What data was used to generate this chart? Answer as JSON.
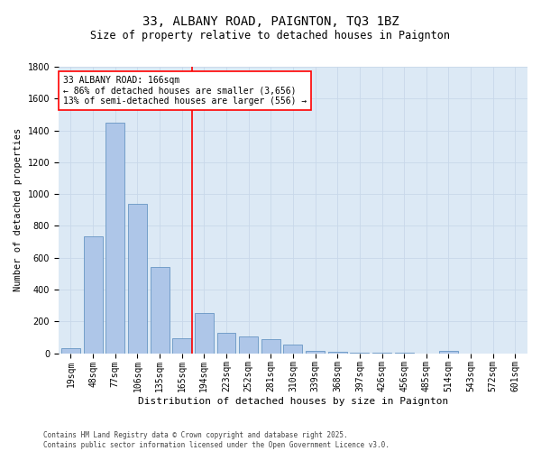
{
  "title1": "33, ALBANY ROAD, PAIGNTON, TQ3 1BZ",
  "title2": "Size of property relative to detached houses in Paignton",
  "xlabel": "Distribution of detached houses by size in Paignton",
  "ylabel": "Number of detached properties",
  "categories": [
    "19sqm",
    "48sqm",
    "77sqm",
    "106sqm",
    "135sqm",
    "165sqm",
    "194sqm",
    "223sqm",
    "252sqm",
    "281sqm",
    "310sqm",
    "339sqm",
    "368sqm",
    "397sqm",
    "426sqm",
    "456sqm",
    "485sqm",
    "514sqm",
    "543sqm",
    "572sqm",
    "601sqm"
  ],
  "values": [
    30,
    735,
    1450,
    940,
    540,
    95,
    255,
    130,
    105,
    90,
    55,
    15,
    8,
    4,
    2,
    2,
    0,
    15,
    0,
    0,
    0
  ],
  "bar_color": "#aec6e8",
  "bar_edge_color": "#5588bb",
  "grid_color": "#c8d8ea",
  "background_color": "#dce9f5",
  "vline_color": "red",
  "vline_x": 5.45,
  "annotation_text": "33 ALBANY ROAD: 166sqm\n← 86% of detached houses are smaller (3,656)\n13% of semi-detached houses are larger (556) →",
  "annotation_box_color": "white",
  "annotation_box_edge": "red",
  "ylim": [
    0,
    1800
  ],
  "yticks": [
    0,
    200,
    400,
    600,
    800,
    1000,
    1200,
    1400,
    1600,
    1800
  ],
  "footer": "Contains HM Land Registry data © Crown copyright and database right 2025.\nContains public sector information licensed under the Open Government Licence v3.0.",
  "title1_fontsize": 10,
  "title2_fontsize": 8.5,
  "xlabel_fontsize": 8,
  "ylabel_fontsize": 7.5,
  "tick_fontsize": 7,
  "annotation_fontsize": 7,
  "footer_fontsize": 5.5
}
